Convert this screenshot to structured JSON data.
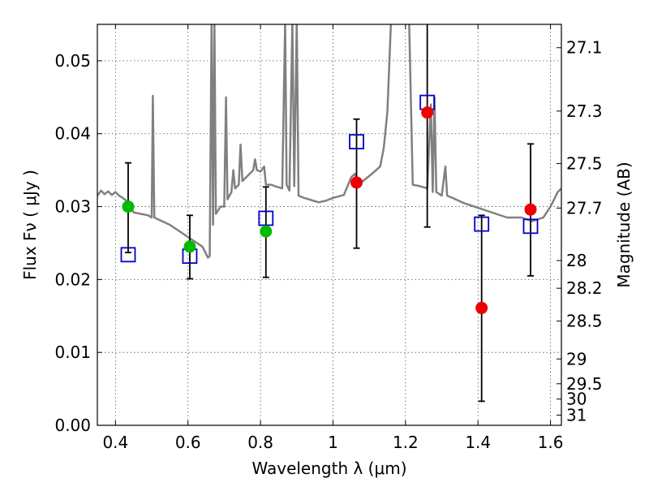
{
  "chart_data": {
    "type": "scatter",
    "xlabel": "Wavelength  λ (μm)",
    "ylabel": "Flux  Fν  ( μJy )",
    "ylabel_right": "Magnitude (AB)",
    "xlim": [
      0.35,
      1.63
    ],
    "ylim": [
      0.0,
      0.055
    ],
    "grid": true,
    "x_ticks": [
      0.4,
      0.6,
      0.8,
      1.0,
      1.2,
      1.4,
      1.6
    ],
    "x_tick_labels": [
      "0.4",
      "0.6",
      "0.8",
      "1",
      "1.2",
      "1.4",
      "1.6"
    ],
    "y_ticks": [
      0.0,
      0.01,
      0.02,
      0.03,
      0.04,
      0.05
    ],
    "y_tick_labels": [
      "0.00",
      "0.01",
      "0.02",
      "0.03",
      "0.04",
      "0.05"
    ],
    "right_ticks": [
      {
        "label": "27.1",
        "flux": 0.0518
      },
      {
        "label": "27.3",
        "flux": 0.0431
      },
      {
        "label": "27.5",
        "flux": 0.0359
      },
      {
        "label": "27.7",
        "flux": 0.0298
      },
      {
        "label": "28",
        "flux": 0.0226
      },
      {
        "label": "28.2",
        "flux": 0.0188
      },
      {
        "label": "28.5",
        "flux": 0.0143
      },
      {
        "label": "29",
        "flux": 0.0091
      },
      {
        "label": "29.5",
        "flux": 0.0057
      },
      {
        "label": "30",
        "flux": 0.0036
      },
      {
        "label": "31",
        "flux": 0.0014
      }
    ],
    "series": [
      {
        "kind": "line",
        "color": "#808080",
        "points": [
          [
            0.35,
            0.0315
          ],
          [
            0.36,
            0.0322
          ],
          [
            0.37,
            0.0317
          ],
          [
            0.38,
            0.0321
          ],
          [
            0.39,
            0.0316
          ],
          [
            0.4,
            0.032
          ],
          [
            0.41,
            0.0315
          ],
          [
            0.42,
            0.0312
          ],
          [
            0.43,
            0.0308
          ],
          [
            0.44,
            0.03
          ],
          [
            0.45,
            0.0292
          ],
          [
            0.47,
            0.029
          ],
          [
            0.49,
            0.0288
          ],
          [
            0.5,
            0.0285
          ],
          [
            0.503,
            0.0452
          ],
          [
            0.507,
            0.0285
          ],
          [
            0.52,
            0.0282
          ],
          [
            0.55,
            0.0275
          ],
          [
            0.58,
            0.0265
          ],
          [
            0.61,
            0.0255
          ],
          [
            0.64,
            0.0245
          ],
          [
            0.655,
            0.023
          ],
          [
            0.66,
            0.0232
          ],
          [
            0.665,
            0.0555
          ],
          [
            0.669,
            0.0275
          ],
          [
            0.673,
            0.0555
          ],
          [
            0.677,
            0.029
          ],
          [
            0.69,
            0.03
          ],
          [
            0.7,
            0.03
          ],
          [
            0.705,
            0.045
          ],
          [
            0.709,
            0.031
          ],
          [
            0.72,
            0.032
          ],
          [
            0.725,
            0.035
          ],
          [
            0.73,
            0.0325
          ],
          [
            0.74,
            0.033
          ],
          [
            0.745,
            0.0385
          ],
          [
            0.75,
            0.0335
          ],
          [
            0.76,
            0.034
          ],
          [
            0.77,
            0.0345
          ],
          [
            0.78,
            0.035
          ],
          [
            0.785,
            0.0365
          ],
          [
            0.79,
            0.035
          ],
          [
            0.8,
            0.0348
          ],
          [
            0.81,
            0.0355
          ],
          [
            0.815,
            0.033
          ],
          [
            0.83,
            0.033
          ],
          [
            0.84,
            0.0328
          ],
          [
            0.86,
            0.0325
          ],
          [
            0.868,
            0.0555
          ],
          [
            0.872,
            0.033
          ],
          [
            0.88,
            0.0322
          ],
          [
            0.888,
            0.0555
          ],
          [
            0.893,
            0.0328
          ],
          [
            0.9,
            0.0555
          ],
          [
            0.905,
            0.0315
          ],
          [
            0.92,
            0.0312
          ],
          [
            0.94,
            0.0309
          ],
          [
            0.96,
            0.0306
          ],
          [
            0.98,
            0.0308
          ],
          [
            1.0,
            0.0312
          ],
          [
            1.03,
            0.0316
          ],
          [
            1.05,
            0.034
          ],
          [
            1.06,
            0.0345
          ],
          [
            1.07,
            0.033
          ],
          [
            1.09,
            0.0338
          ],
          [
            1.11,
            0.0346
          ],
          [
            1.13,
            0.0355
          ],
          [
            1.14,
            0.038
          ],
          [
            1.15,
            0.043
          ],
          [
            1.16,
            0.0555
          ],
          [
            1.21,
            0.0555
          ],
          [
            1.22,
            0.033
          ],
          [
            1.24,
            0.0328
          ],
          [
            1.26,
            0.0325
          ],
          [
            1.27,
            0.044
          ],
          [
            1.275,
            0.032
          ],
          [
            1.28,
            0.045
          ],
          [
            1.285,
            0.032
          ],
          [
            1.3,
            0.0315
          ],
          [
            1.31,
            0.0355
          ],
          [
            1.315,
            0.0315
          ],
          [
            1.33,
            0.0312
          ],
          [
            1.36,
            0.0305
          ],
          [
            1.39,
            0.03
          ],
          [
            1.42,
            0.0295
          ],
          [
            1.45,
            0.029
          ],
          [
            1.48,
            0.0285
          ],
          [
            1.52,
            0.0285
          ],
          [
            1.55,
            0.028
          ],
          [
            1.58,
            0.0285
          ],
          [
            1.6,
            0.03
          ],
          [
            1.61,
            0.031
          ],
          [
            1.62,
            0.032
          ],
          [
            1.63,
            0.0325
          ]
        ]
      },
      {
        "kind": "errorbar",
        "color": "#000000",
        "points": [
          {
            "x": 0.435,
            "low": 0.0237,
            "high": 0.036
          },
          {
            "x": 0.605,
            "low": 0.0201,
            "high": 0.0288
          },
          {
            "x": 0.815,
            "low": 0.0203,
            "high": 0.0327
          },
          {
            "x": 1.065,
            "low": 0.0243,
            "high": 0.042
          },
          {
            "x": 1.26,
            "low": 0.0272,
            "high": 0.0555
          },
          {
            "x": 1.41,
            "low": 0.0033,
            "high": 0.0288
          },
          {
            "x": 1.545,
            "low": 0.0205,
            "high": 0.0386
          }
        ]
      },
      {
        "kind": "open-square",
        "color": "#0000cc",
        "points": [
          [
            0.435,
            0.0234
          ],
          [
            0.605,
            0.0232
          ],
          [
            0.815,
            0.0284
          ],
          [
            1.065,
            0.0389
          ],
          [
            1.26,
            0.0443
          ],
          [
            1.41,
            0.0276
          ],
          [
            1.545,
            0.0273
          ]
        ]
      },
      {
        "kind": "filled-circle",
        "color": "#00bb00",
        "points": [
          [
            0.435,
            0.03
          ],
          [
            0.605,
            0.0245
          ],
          [
            0.815,
            0.0266
          ]
        ]
      },
      {
        "kind": "filled-circle",
        "color": "#ee0000",
        "points": [
          [
            1.065,
            0.0333
          ],
          [
            1.26,
            0.0429
          ],
          [
            1.41,
            0.0161
          ],
          [
            1.545,
            0.0296
          ]
        ]
      }
    ]
  }
}
